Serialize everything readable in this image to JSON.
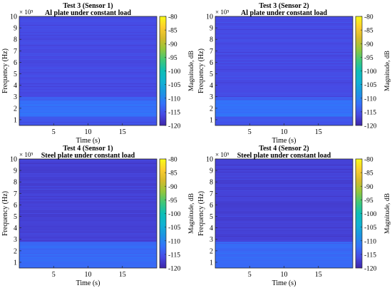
{
  "chart_data": [
    {
      "type": "heatmap",
      "title_line1": "Test 3 (Sensor 1)",
      "title_line2": "Al plate under constant load",
      "xlabel": "Time (s)",
      "ylabel": "Frequency (Hz)",
      "y_exponent": "× 10⁵",
      "colorbar_label": "Magnitude, dB",
      "x_ticks": [
        5,
        10,
        15
      ],
      "y_ticks": [
        1,
        2,
        3,
        4,
        5,
        6,
        7,
        8,
        9,
        10
      ],
      "colorbar_ticks": [
        -80,
        -85,
        -90,
        -95,
        -100,
        -105,
        -110,
        -115,
        -120
      ],
      "xlim": [
        0,
        20
      ],
      "ylim": [
        0.5,
        10
      ],
      "clim": [
        -120,
        -80
      ],
      "band_levels": [
        {
          "from": 0.5,
          "to": 1.3,
          "db": -115
        },
        {
          "from": 1.3,
          "to": 2.7,
          "db": -112
        },
        {
          "from": 2.7,
          "to": 3.0,
          "db": -114
        },
        {
          "from": 3.0,
          "to": 10.0,
          "db": -116
        }
      ]
    },
    {
      "type": "heatmap",
      "title_line1": "Test 3 (Sensor 2)",
      "title_line2": "Al plate under constant load",
      "xlabel": "Time (s)",
      "ylabel": "Frequency (Hz)",
      "y_exponent": "× 10⁵",
      "colorbar_label": "Magnitude, dB",
      "x_ticks": [
        5,
        10,
        15
      ],
      "y_ticks": [
        1,
        2,
        3,
        4,
        5,
        6,
        7,
        8,
        9,
        10
      ],
      "colorbar_ticks": [
        -80,
        -85,
        -90,
        -95,
        -100,
        -105,
        -110,
        -115,
        -120
      ],
      "xlim": [
        0,
        20
      ],
      "ylim": [
        0.5,
        10
      ],
      "clim": [
        -120,
        -80
      ],
      "band_levels": [
        {
          "from": 0.5,
          "to": 1.3,
          "db": -115
        },
        {
          "from": 1.3,
          "to": 2.7,
          "db": -112
        },
        {
          "from": 2.7,
          "to": 3.0,
          "db": -114
        },
        {
          "from": 3.0,
          "to": 10.0,
          "db": -116
        }
      ]
    },
    {
      "type": "heatmap",
      "title_line1": "Test 4 (Sensor 1)",
      "title_line2": "Steel plate under constant load",
      "xlabel": "Time (s)",
      "ylabel": "Frequency (Hz)",
      "y_exponent": "× 10⁵",
      "colorbar_label": "Magnitude, dB",
      "x_ticks": [
        5,
        10,
        15
      ],
      "y_ticks": [
        1,
        2,
        3,
        4,
        5,
        6,
        7,
        8,
        9,
        10
      ],
      "colorbar_ticks": [
        -80,
        -85,
        -90,
        -95,
        -100,
        -105,
        -110,
        -115,
        -120
      ],
      "xlim": [
        0,
        20
      ],
      "ylim": [
        0.5,
        10
      ],
      "clim": [
        -120,
        -80
      ],
      "band_levels": [
        {
          "from": 0.5,
          "to": 2.8,
          "db": -113
        },
        {
          "from": 2.8,
          "to": 10.0,
          "db": -117
        }
      ]
    },
    {
      "type": "heatmap",
      "title_line1": "Test 4 (Sensor 2)",
      "title_line2": "Steel plate under constant load",
      "xlabel": "Time (s)",
      "ylabel": "Frequency (Hz)",
      "y_exponent": "× 10⁵",
      "colorbar_label": "Magnitude, dB",
      "x_ticks": [
        5,
        10,
        15
      ],
      "y_ticks": [
        1,
        2,
        3,
        4,
        5,
        6,
        7,
        8,
        9,
        10
      ],
      "colorbar_ticks": [
        -80,
        -85,
        -90,
        -95,
        -100,
        -105,
        -110,
        -115,
        -120
      ],
      "xlim": [
        0,
        20
      ],
      "ylim": [
        0.5,
        10
      ],
      "clim": [
        -120,
        -80
      ],
      "band_levels": [
        {
          "from": 0.5,
          "to": 2.8,
          "db": -113
        },
        {
          "from": 2.8,
          "to": 10.0,
          "db": -117
        }
      ]
    }
  ]
}
